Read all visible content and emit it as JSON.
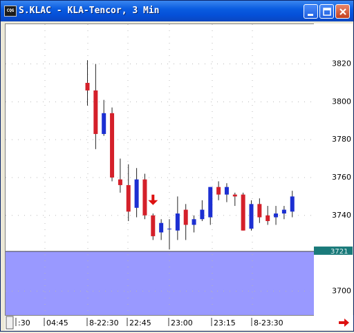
{
  "window": {
    "title": "S.KLAC - KLA-Tencor, 3 Min",
    "icon_text": "CQG",
    "controls": [
      "minimize-icon",
      "maximize-icon",
      "close-icon"
    ]
  },
  "colors": {
    "up_candle": "#1c2fd2",
    "down_candle": "#d4202a",
    "shaded_region": "#9999ff",
    "current_price_tag": "#1a7a7a",
    "arrow": "#dd1111"
  },
  "current_price_label": "3721",
  "y_axis_labels": [
    "3820",
    "3800",
    "3780",
    "3760",
    "3740",
    "3700"
  ],
  "x_axis_labels": [
    ":30",
    "04:45",
    "8-22:30",
    "22:45",
    "23:00",
    "23:15",
    "8-23:30"
  ],
  "chart_data": {
    "type": "candlestick",
    "ylim": [
      3687,
      3841
    ],
    "current_price": 3721,
    "shaded_below": 3721,
    "y_ticks": [
      3820,
      3800,
      3780,
      3760,
      3740,
      3700
    ],
    "x_ticks": [
      ":30",
      "04:45",
      "8-22:30",
      "22:45",
      "23:00",
      "23:15",
      "8-23:30"
    ],
    "signal": {
      "type": "sell-arrow",
      "bar": 8
    },
    "candles": [
      {
        "open": 3810,
        "high": 3822,
        "low": 3798,
        "close": 3806
      },
      {
        "open": 3806,
        "high": 3820,
        "low": 3775,
        "close": 3783
      },
      {
        "open": 3783,
        "high": 3801,
        "low": 3782,
        "close": 3794
      },
      {
        "open": 3794,
        "high": 3797,
        "low": 3758,
        "close": 3760
      },
      {
        "open": 3759,
        "high": 3770,
        "low": 3752,
        "close": 3756
      },
      {
        "open": 3756,
        "high": 3767,
        "low": 3737,
        "close": 3742
      },
      {
        "open": 3744,
        "high": 3765,
        "low": 3739,
        "close": 3759
      },
      {
        "open": 3759,
        "high": 3762,
        "low": 3738,
        "close": 3740
      },
      {
        "open": 3740,
        "high": 3741,
        "low": 3727,
        "close": 3729
      },
      {
        "open": 3731,
        "high": 3738,
        "low": 3727,
        "close": 3736
      },
      {
        "open": 3733,
        "high": 3738,
        "low": 3722,
        "close": 3733
      },
      {
        "open": 3732,
        "high": 3750,
        "low": 3727,
        "close": 3741
      },
      {
        "open": 3743,
        "high": 3746,
        "low": 3727,
        "close": 3735
      },
      {
        "open": 3735,
        "high": 3740,
        "low": 3731,
        "close": 3738
      },
      {
        "open": 3738,
        "high": 3748,
        "low": 3737,
        "close": 3743
      },
      {
        "open": 3739,
        "high": 3755,
        "low": 3735,
        "close": 3755
      },
      {
        "open": 3755,
        "high": 3758,
        "low": 3748,
        "close": 3751
      },
      {
        "open": 3751,
        "high": 3757,
        "low": 3747,
        "close": 3755
      },
      {
        "open": 3751,
        "high": 3752,
        "low": 3745,
        "close": 3750
      },
      {
        "open": 3751,
        "high": 3752,
        "low": 3732,
        "close": 3732
      },
      {
        "open": 3733,
        "high": 3748,
        "low": 3732,
        "close": 3746
      },
      {
        "open": 3746,
        "high": 3749,
        "low": 3736,
        "close": 3739
      },
      {
        "open": 3740,
        "high": 3745,
        "low": 3735,
        "close": 3737
      },
      {
        "open": 3739,
        "high": 3745,
        "low": 3735,
        "close": 3741
      },
      {
        "open": 3741,
        "high": 3745,
        "low": 3738,
        "close": 3743
      },
      {
        "open": 3742,
        "high": 3753,
        "low": 3739,
        "close": 3750
      }
    ]
  }
}
